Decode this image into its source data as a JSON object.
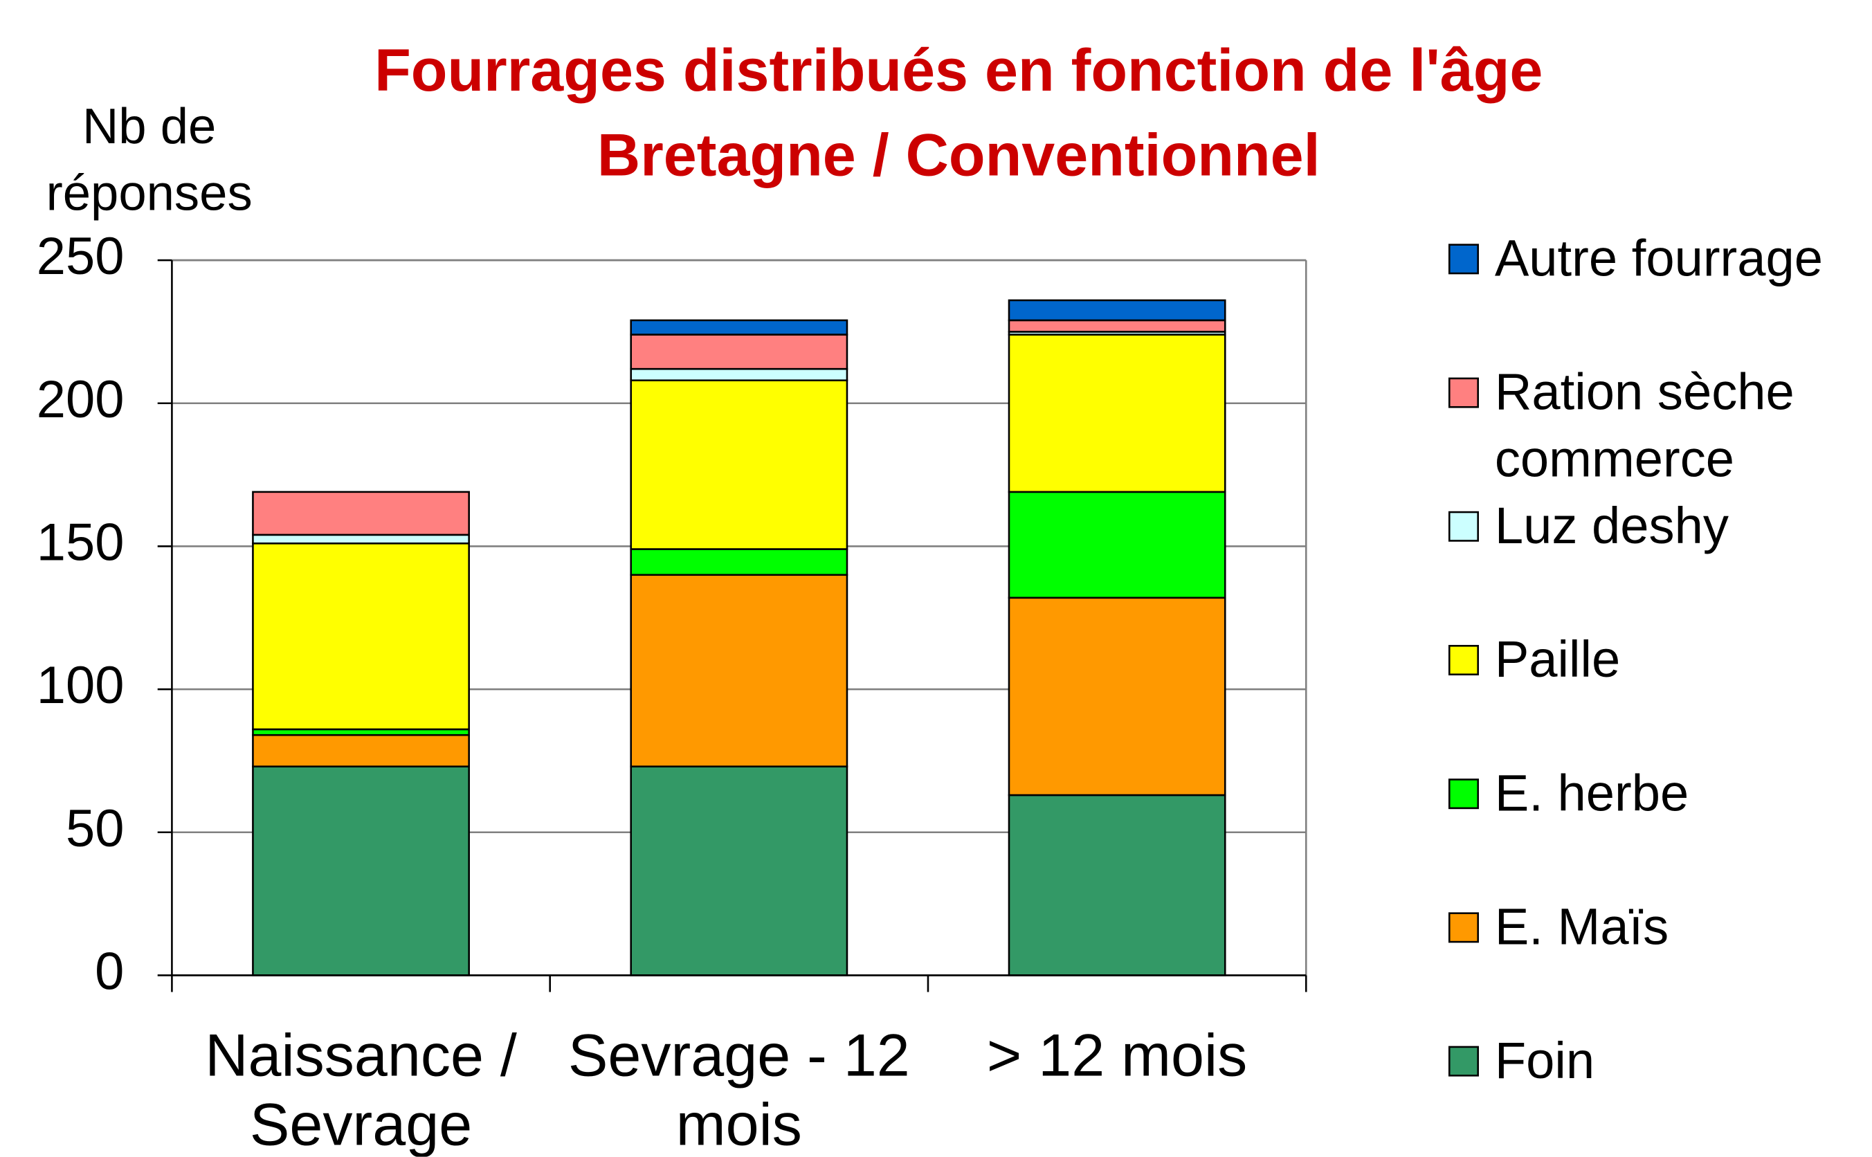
{
  "chart_data": {
    "type": "stacked-bar",
    "title": "Fourrages distribués en fonction de l'âge",
    "subtitle": "Bretagne / Conventionnel",
    "y_label": "Nb de réponses",
    "categories": [
      "Naissance / Sevrage",
      "Sevrage - 12 mois",
      "> 12 mois"
    ],
    "series": [
      {
        "name": "Foin",
        "color": "#339966",
        "values": [
          73,
          73,
          63
        ]
      },
      {
        "name": "E. Maïs",
        "color": "#ff9900",
        "values": [
          11,
          67,
          69
        ]
      },
      {
        "name": "E. herbe",
        "color": "#00ff00",
        "values": [
          2,
          9,
          37
        ]
      },
      {
        "name": "Paille",
        "color": "#ffff00",
        "values": [
          65,
          59,
          55
        ]
      },
      {
        "name": "Luz deshy",
        "color": "#ccffff",
        "values": [
          3,
          4,
          1
        ]
      },
      {
        "name": "Ration sèche commerce",
        "color": "#ff8080",
        "values": [
          15,
          12,
          4
        ]
      },
      {
        "name": "Autre fourrage",
        "color": "#0066cc",
        "values": [
          0,
          5,
          7
        ]
      }
    ],
    "ylim": [
      0,
      250
    ],
    "yticks": [
      0,
      50,
      100,
      150,
      200,
      250
    ],
    "grid": true,
    "legend": "right"
  }
}
